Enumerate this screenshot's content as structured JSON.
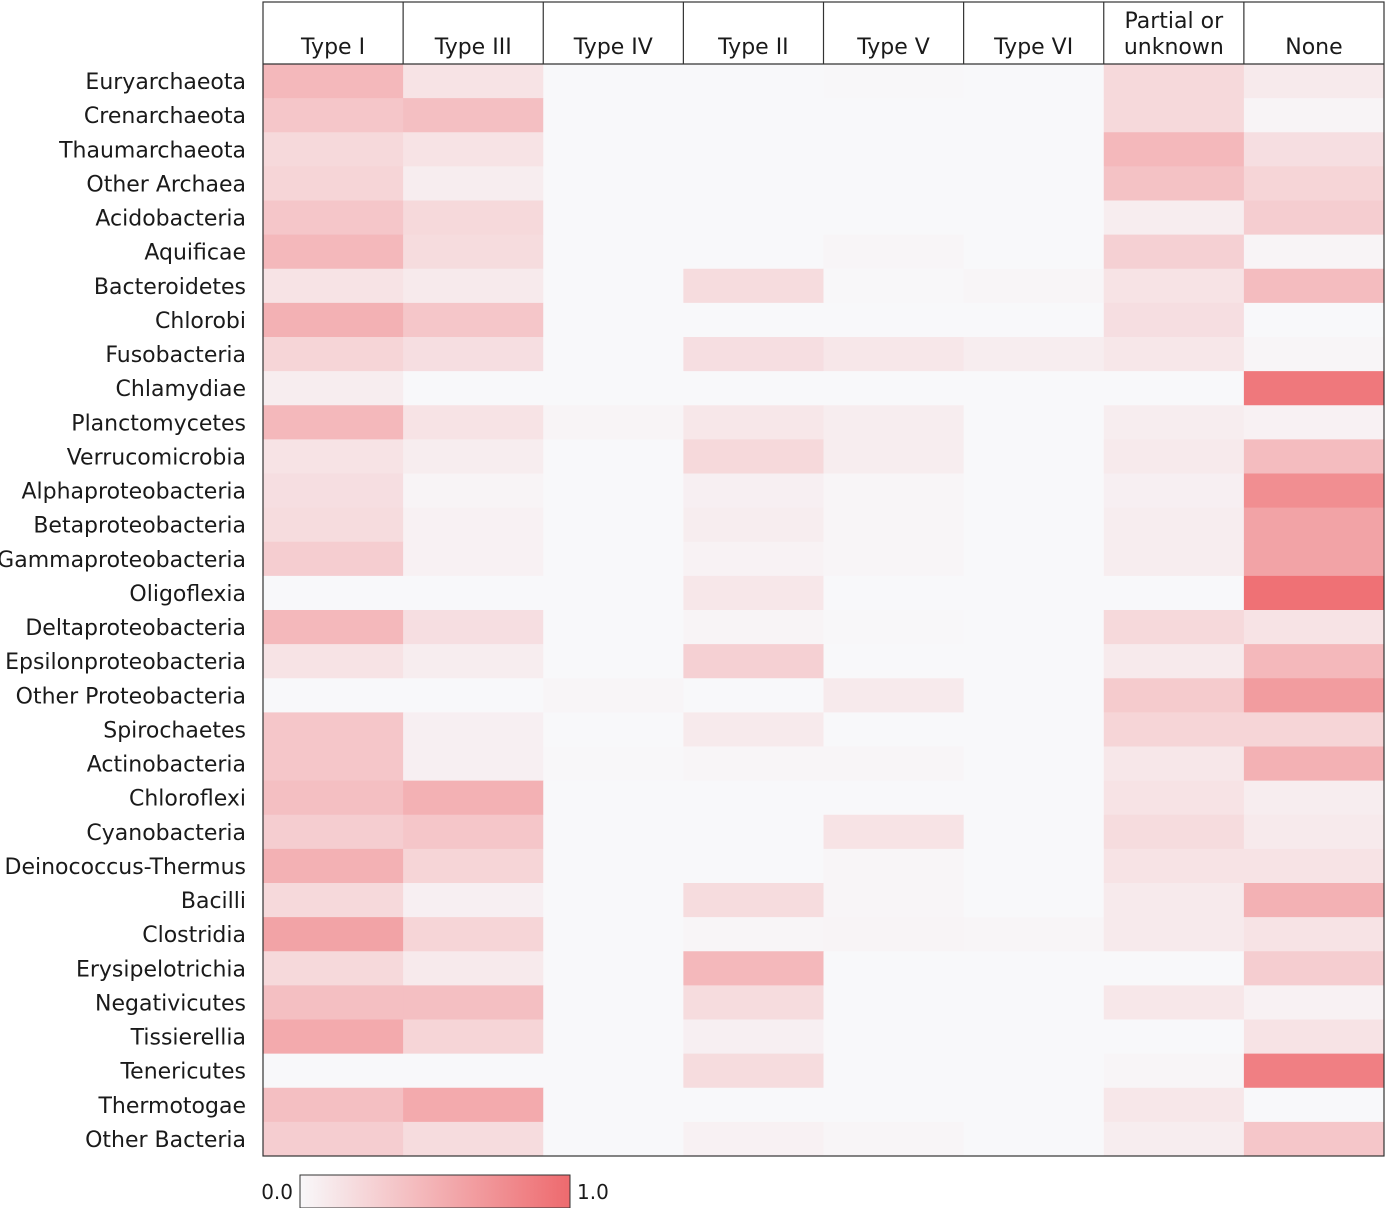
{
  "chart_data": {
    "type": "heatmap",
    "columns": [
      "Type I",
      "Type III",
      "Type IV",
      "Type II",
      "Type V",
      "Type VI",
      "Partial or\nunknown",
      "None"
    ],
    "rows": [
      "Euryarchaeota",
      "Crenarchaeota",
      "Thaumarchaeota",
      "Other Archaea",
      "Acidobacteria",
      "Aquificae",
      "Bacteroidetes",
      "Chlorobi",
      "Fusobacteria",
      "Chlamydiae",
      "Planctomycetes",
      "Verrucomicrobia",
      "Alphaproteobacteria",
      "Betaproteobacteria",
      "Gammaproteobacteria",
      "Oligoflexia",
      "Deltaproteobacteria",
      "Epsilonproteobacteria",
      "Other Proteobacteria",
      "Spirochaetes",
      "Actinobacteria",
      "Chloroflexi",
      "Cyanobacteria",
      "Deinococcus-Thermus",
      "Bacilli",
      "Clostridia",
      "Erysipelotrichia",
      "Negativicutes",
      "Tissierellia",
      "Tenericutes",
      "Thermotogae",
      "Other Bacteria"
    ],
    "values": [
      [
        0.45,
        0.15,
        0.0,
        0.0,
        0.01,
        0.0,
        0.22,
        0.1
      ],
      [
        0.35,
        0.4,
        0.0,
        0.0,
        0.0,
        0.0,
        0.22,
        0.03
      ],
      [
        0.22,
        0.15,
        0.0,
        0.0,
        0.0,
        0.0,
        0.45,
        0.18
      ],
      [
        0.25,
        0.08,
        0.0,
        0.0,
        0.0,
        0.0,
        0.38,
        0.25
      ],
      [
        0.35,
        0.22,
        0.0,
        0.0,
        0.0,
        0.0,
        0.08,
        0.3
      ],
      [
        0.45,
        0.2,
        0.0,
        0.0,
        0.02,
        0.0,
        0.28,
        0.03
      ],
      [
        0.15,
        0.1,
        0.0,
        0.2,
        0.01,
        0.02,
        0.15,
        0.42
      ],
      [
        0.5,
        0.35,
        0.0,
        0.0,
        0.0,
        0.0,
        0.18,
        0.0
      ],
      [
        0.25,
        0.18,
        0.0,
        0.18,
        0.12,
        0.08,
        0.12,
        0.02
      ],
      [
        0.08,
        0.0,
        0.0,
        0.0,
        0.0,
        0.0,
        0.0,
        0.9
      ],
      [
        0.45,
        0.15,
        0.03,
        0.12,
        0.08,
        0.0,
        0.08,
        0.05
      ],
      [
        0.15,
        0.08,
        0.0,
        0.22,
        0.08,
        0.0,
        0.1,
        0.42
      ],
      [
        0.18,
        0.03,
        0.0,
        0.06,
        0.02,
        0.0,
        0.06,
        0.75
      ],
      [
        0.2,
        0.05,
        0.0,
        0.08,
        0.02,
        0.0,
        0.08,
        0.6
      ],
      [
        0.3,
        0.05,
        0.0,
        0.04,
        0.02,
        0.0,
        0.08,
        0.6
      ],
      [
        0.0,
        0.0,
        0.0,
        0.12,
        0.0,
        0.0,
        0.0,
        0.95
      ],
      [
        0.45,
        0.18,
        0.0,
        0.03,
        0.01,
        0.0,
        0.22,
        0.15
      ],
      [
        0.15,
        0.08,
        0.0,
        0.28,
        0.0,
        0.0,
        0.1,
        0.45
      ],
      [
        0.0,
        0.0,
        0.02,
        0.0,
        0.1,
        0.0,
        0.32,
        0.65
      ],
      [
        0.35,
        0.06,
        0.0,
        0.1,
        0.0,
        0.0,
        0.25,
        0.25
      ],
      [
        0.35,
        0.06,
        0.01,
        0.02,
        0.02,
        0.0,
        0.12,
        0.5
      ],
      [
        0.4,
        0.5,
        0.0,
        0.0,
        0.0,
        0.0,
        0.15,
        0.08
      ],
      [
        0.3,
        0.35,
        0.0,
        0.0,
        0.15,
        0.0,
        0.2,
        0.1
      ],
      [
        0.5,
        0.25,
        0.0,
        0.0,
        0.02,
        0.0,
        0.15,
        0.15
      ],
      [
        0.22,
        0.06,
        0.0,
        0.2,
        0.02,
        0.0,
        0.1,
        0.5
      ],
      [
        0.6,
        0.25,
        0.0,
        0.02,
        0.03,
        0.02,
        0.1,
        0.15
      ],
      [
        0.22,
        0.1,
        0.0,
        0.45,
        0.0,
        0.0,
        0.0,
        0.3
      ],
      [
        0.4,
        0.4,
        0.0,
        0.2,
        0.0,
        0.0,
        0.12,
        0.05
      ],
      [
        0.55,
        0.25,
        0.0,
        0.06,
        0.0,
        0.0,
        0.0,
        0.15
      ],
      [
        0.0,
        0.0,
        0.0,
        0.2,
        0.0,
        0.0,
        0.02,
        0.85
      ],
      [
        0.4,
        0.55,
        0.0,
        0.0,
        0.0,
        0.0,
        0.12,
        0.0
      ],
      [
        0.3,
        0.2,
        0.0,
        0.05,
        0.02,
        0.0,
        0.08,
        0.35
      ]
    ],
    "colorbar": {
      "min_label": "0.0",
      "max_label": "1.0",
      "range": [
        0.0,
        1.0
      ]
    },
    "color_low": "#f8f8fa",
    "color_high": "#ee6a6e"
  }
}
